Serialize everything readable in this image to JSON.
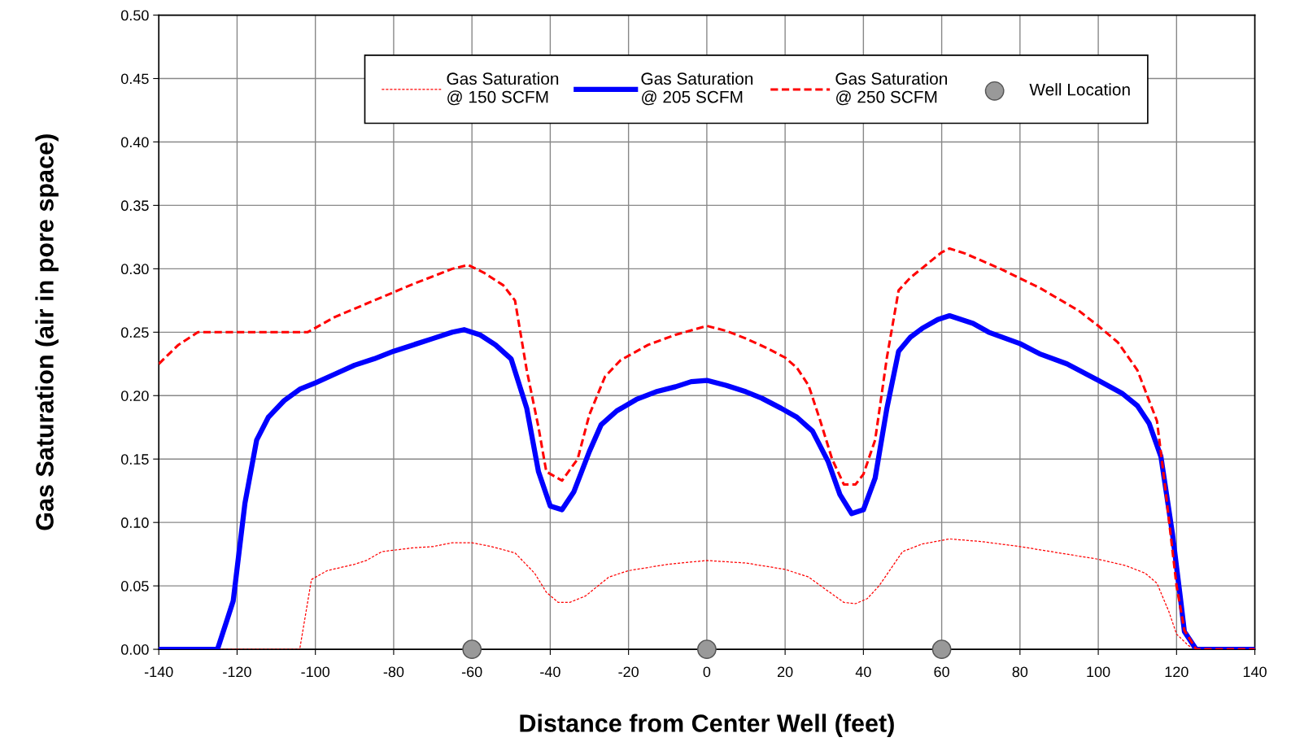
{
  "chart_data": {
    "type": "line",
    "xlabel": "Distance from Center Well (feet)",
    "ylabel": "Gas Saturation (air in pore space)",
    "xlim": [
      -140,
      140
    ],
    "xticks": [
      -140,
      -120,
      -100,
      -80,
      -60,
      -40,
      -20,
      0,
      20,
      40,
      60,
      80,
      100,
      120,
      140
    ],
    "ylim": [
      0,
      0.5
    ],
    "yticks": [
      {
        "value": 0,
        "label": "0.00"
      },
      {
        "value": 0.05,
        "label": "0.05"
      },
      {
        "value": 0.1,
        "label": "0.10"
      },
      {
        "value": 0.15,
        "label": "0.15"
      },
      {
        "value": 0.2,
        "label": "0.20"
      },
      {
        "value": 0.25,
        "label": "0.25"
      },
      {
        "value": 0.3,
        "label": "0.30"
      },
      {
        "value": 0.35,
        "label": "0.35"
      },
      {
        "value": 0.4,
        "label": "0.40"
      },
      {
        "value": 0.45,
        "label": "0.45"
      },
      {
        "value": 0.5,
        "label": "0.50"
      }
    ],
    "grid": true,
    "legend": "top right",
    "series": [
      {
        "name": "Gas Saturation\n@ 150 SCFM",
        "color": "#ff0000",
        "line_style": "dotted",
        "marker": "none",
        "x": [
          -140,
          -104,
          -101,
          -97,
          -90,
          -87,
          -83,
          -75,
          -70,
          -65,
          -60,
          -55,
          -49,
          -44,
          -41,
          -38,
          -35,
          -31,
          -25,
          -20,
          -10,
          0,
          10,
          20,
          26,
          30,
          35,
          38,
          41,
          44,
          48,
          50,
          55,
          62,
          70,
          80,
          90,
          100,
          107,
          112,
          115,
          118,
          120,
          123,
          125,
          140
        ],
        "values": [
          0,
          0,
          0.055,
          0.062,
          0.067,
          0.07,
          0.077,
          0.08,
          0.081,
          0.084,
          0.084,
          0.081,
          0.076,
          0.06,
          0.045,
          0.037,
          0.037,
          0.042,
          0.057,
          0.062,
          0.067,
          0.07,
          0.068,
          0.063,
          0.057,
          0.048,
          0.037,
          0.036,
          0.04,
          0.05,
          0.068,
          0.077,
          0.083,
          0.087,
          0.085,
          0.081,
          0.076,
          0.071,
          0.066,
          0.06,
          0.052,
          0.03,
          0.012,
          0.003,
          0,
          0
        ]
      },
      {
        "name": "Gas Saturation\n@ 205 SCFM",
        "color": "#0000ff",
        "line_style": "solid",
        "marker": "none",
        "x": [
          -140,
          -125,
          -121,
          -118,
          -115,
          -112,
          -108,
          -104,
          -100,
          -95,
          -90,
          -85,
          -80,
          -75,
          -70,
          -65,
          -62,
          -58,
          -54,
          -50,
          -46,
          -43,
          -40,
          -37,
          -34,
          -30,
          -27,
          -23,
          -18,
          -13,
          -8,
          -4,
          0,
          5,
          10,
          14,
          19,
          23,
          27,
          31,
          34,
          37,
          40,
          43,
          46,
          49,
          52,
          55,
          59,
          62,
          68,
          72,
          80,
          85,
          92,
          100,
          106,
          110,
          113,
          116,
          119,
          121,
          122,
          125,
          140
        ],
        "values": [
          0,
          0,
          0.038,
          0.115,
          0.165,
          0.183,
          0.196,
          0.205,
          0.21,
          0.217,
          0.224,
          0.229,
          0.235,
          0.24,
          0.245,
          0.25,
          0.252,
          0.248,
          0.24,
          0.229,
          0.19,
          0.14,
          0.113,
          0.11,
          0.124,
          0.156,
          0.177,
          0.188,
          0.197,
          0.203,
          0.207,
          0.211,
          0.212,
          0.208,
          0.203,
          0.198,
          0.19,
          0.183,
          0.172,
          0.148,
          0.122,
          0.107,
          0.11,
          0.135,
          0.19,
          0.235,
          0.246,
          0.253,
          0.26,
          0.263,
          0.257,
          0.25,
          0.241,
          0.233,
          0.225,
          0.212,
          0.202,
          0.192,
          0.178,
          0.152,
          0.09,
          0.04,
          0.014,
          0,
          0
        ]
      },
      {
        "name": "Gas Saturation\n@ 250 SCFM",
        "color": "#ff0000",
        "line_style": "dashed",
        "marker": "none",
        "x": [
          -140,
          -135,
          -130,
          -102,
          -95,
          -85,
          -75,
          -65,
          -61,
          -57,
          -52,
          -49,
          -46,
          -43,
          -41,
          -37,
          -33,
          -30,
          -26,
          -22,
          -15,
          -8,
          0,
          5,
          10,
          15,
          20,
          23,
          26,
          29,
          32,
          35,
          38,
          40,
          43,
          46,
          49,
          52,
          56,
          60,
          62,
          66,
          75,
          85,
          95,
          100,
          105,
          110,
          115,
          117,
          120,
          122,
          125,
          140
        ],
        "values": [
          0.225,
          0.24,
          0.25,
          0.25,
          0.262,
          0.275,
          0.288,
          0.3,
          0.303,
          0.297,
          0.287,
          0.275,
          0.22,
          0.175,
          0.14,
          0.133,
          0.15,
          0.185,
          0.215,
          0.228,
          0.24,
          0.248,
          0.255,
          0.251,
          0.245,
          0.238,
          0.23,
          0.222,
          0.208,
          0.18,
          0.15,
          0.13,
          0.13,
          0.138,
          0.165,
          0.23,
          0.283,
          0.293,
          0.303,
          0.313,
          0.316,
          0.312,
          0.3,
          0.285,
          0.267,
          0.255,
          0.242,
          0.22,
          0.18,
          0.13,
          0.05,
          0.015,
          0,
          0
        ]
      },
      {
        "name": "Well Location",
        "type": "scatter",
        "color": "#999999",
        "marker": "circle",
        "x": [
          -60,
          0,
          60
        ],
        "values": [
          0,
          0,
          0
        ]
      }
    ]
  }
}
